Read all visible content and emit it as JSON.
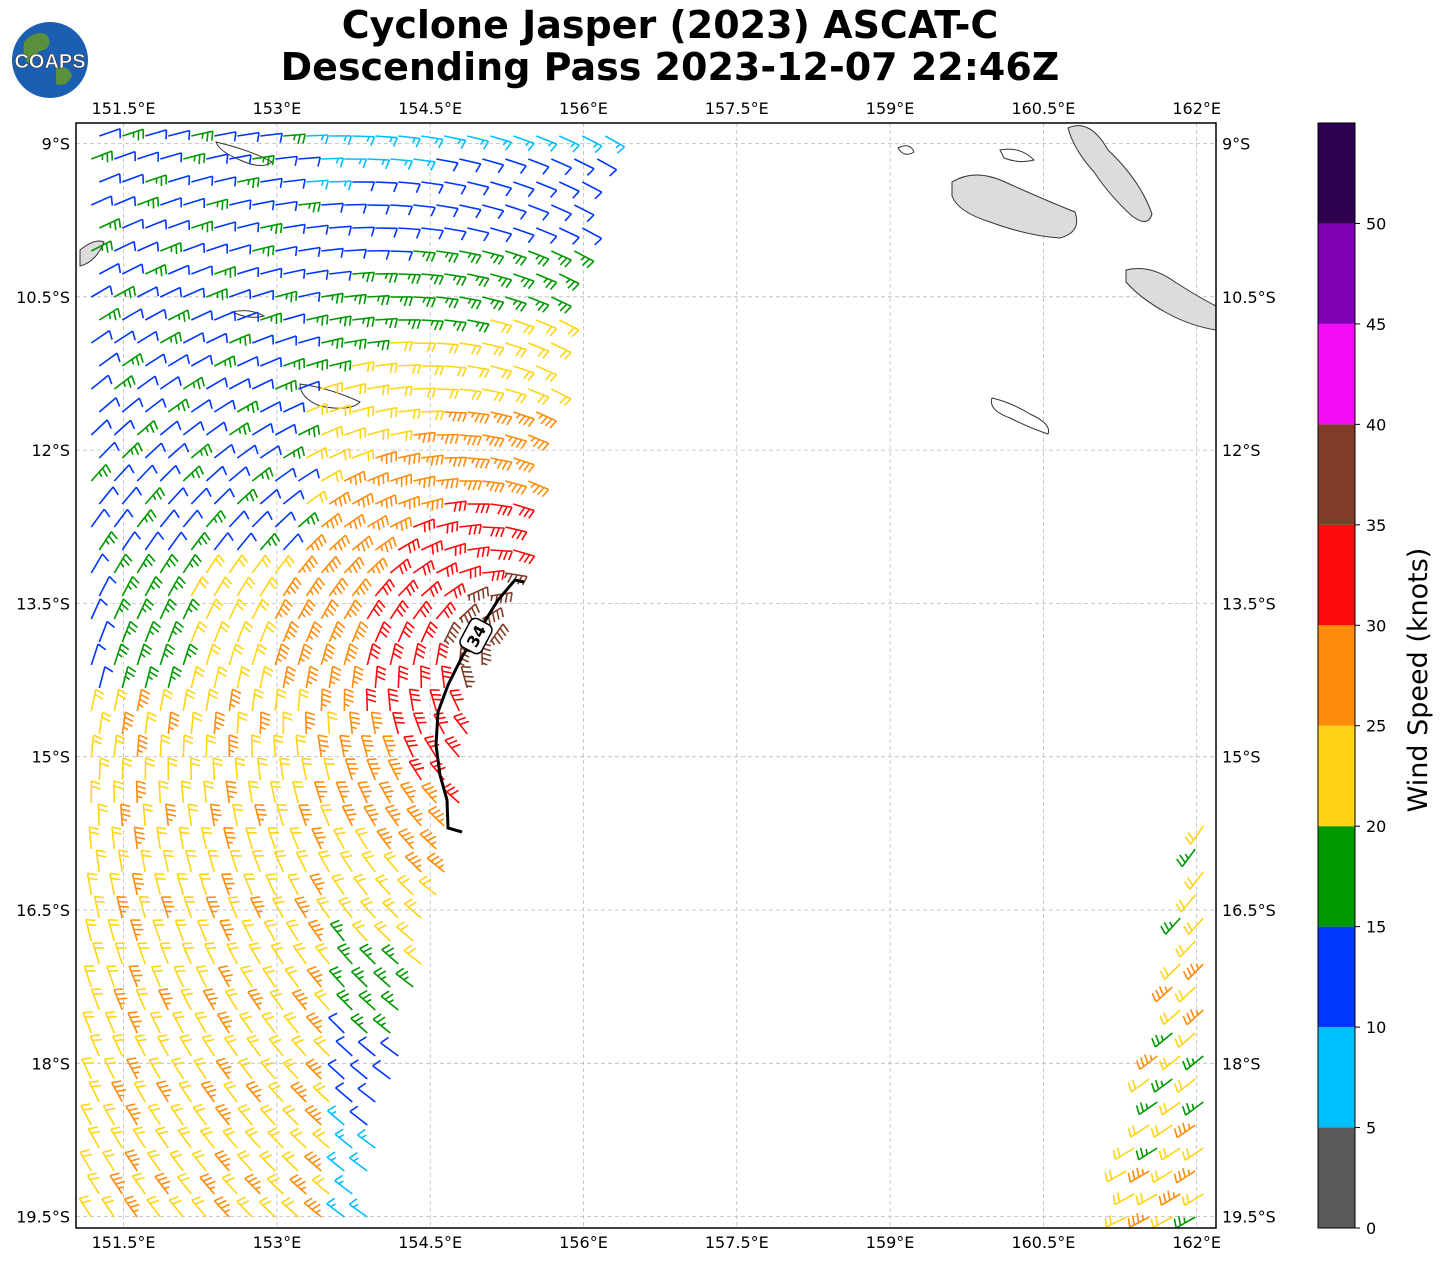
{
  "title": {
    "line1": "Cyclone Jasper (2023) ASCAT-C",
    "line2": "Descending Pass 2023-12-07 22:46Z"
  },
  "logo": {
    "text": "COAPS",
    "colors": {
      "ocean": "#1b5fb3",
      "land": "#5a8f3c",
      "text": "#ffffff"
    }
  },
  "map": {
    "lon_ticks": [
      "151.5°E",
      "153°E",
      "154.5°E",
      "156°E",
      "157.5°E",
      "159°E",
      "160.5°E",
      "162°E"
    ],
    "lat_ticks": [
      "9°S",
      "10.5°S",
      "12°S",
      "13.5°S",
      "15°S",
      "16.5°S",
      "18°S",
      "19.5°S"
    ],
    "gridlines": true,
    "contour": {
      "label": "34",
      "color": "#000000"
    }
  },
  "colorbar": {
    "label": "Wind Speed (knots)",
    "ticks": [
      "0",
      "5",
      "10",
      "15",
      "20",
      "25",
      "30",
      "35",
      "40",
      "45",
      "50"
    ],
    "bins": [
      {
        "min": 0,
        "max": 5,
        "color": "#5a5a5a"
      },
      {
        "min": 5,
        "max": 10,
        "color": "#00bfff"
      },
      {
        "min": 10,
        "max": 15,
        "color": "#0037ff"
      },
      {
        "min": 15,
        "max": 20,
        "color": "#009900"
      },
      {
        "min": 20,
        "max": 25,
        "color": "#ffd414"
      },
      {
        "min": 25,
        "max": 30,
        "color": "#ff8c0a"
      },
      {
        "min": 30,
        "max": 35,
        "color": "#ff0a0a"
      },
      {
        "min": 35,
        "max": 40,
        "color": "#7f3d28"
      },
      {
        "min": 40,
        "max": 45,
        "color": "#f50af5"
      },
      {
        "min": 45,
        "max": 50,
        "color": "#8200b4"
      },
      {
        "min": 50,
        "max": 55,
        "color": "#2d0050"
      }
    ]
  }
}
